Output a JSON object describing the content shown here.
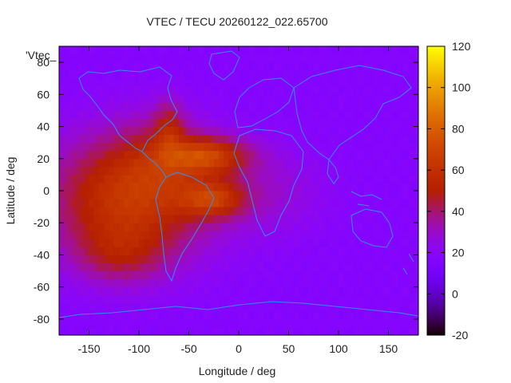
{
  "chart_data": {
    "type": "heatmap",
    "title": "VTEC / TECU 20260122_022.65700",
    "xlabel": "Longitude / deg",
    "ylabel": "Latitude / deg",
    "xlim": [
      -180,
      180
    ],
    "ylim": [
      -90,
      90
    ],
    "x_ticks": [
      -150,
      -100,
      -50,
      0,
      50,
      100,
      150
    ],
    "y_ticks": [
      -80,
      -60,
      -40,
      -20,
      0,
      20,
      40,
      60,
      80
    ],
    "colorbar": {
      "range": [
        -20,
        120
      ],
      "ticks": [
        -20,
        0,
        20,
        40,
        60,
        80,
        100,
        120
      ],
      "palette": "gnuplot"
    },
    "inset_label": "'Vtec_",
    "background_level": 18,
    "features": [
      {
        "lon": -110,
        "lat": -5,
        "sig_lon": 55,
        "sig_lat": 28,
        "peak": 45
      },
      {
        "lon": -75,
        "lat": 20,
        "sig_lon": 30,
        "sig_lat": 18,
        "peak": 15
      },
      {
        "lon": -30,
        "lat": 22,
        "sig_lon": 28,
        "sig_lat": 8,
        "peak": 40
      },
      {
        "lon": -25,
        "lat": -5,
        "sig_lon": 22,
        "sig_lat": 8,
        "peak": 35
      },
      {
        "lon": -70,
        "lat": 40,
        "sig_lon": 10,
        "sig_lat": 12,
        "peak": 20
      },
      {
        "lon": -120,
        "lat": -40,
        "sig_lon": 30,
        "sig_lat": 12,
        "peak": 15
      },
      {
        "lon": 30,
        "lat": 0,
        "sig_lon": 40,
        "sig_lat": 20,
        "peak": 10
      }
    ],
    "colors": {
      "coastline": "#2f8fff",
      "frame": "#000000"
    }
  }
}
